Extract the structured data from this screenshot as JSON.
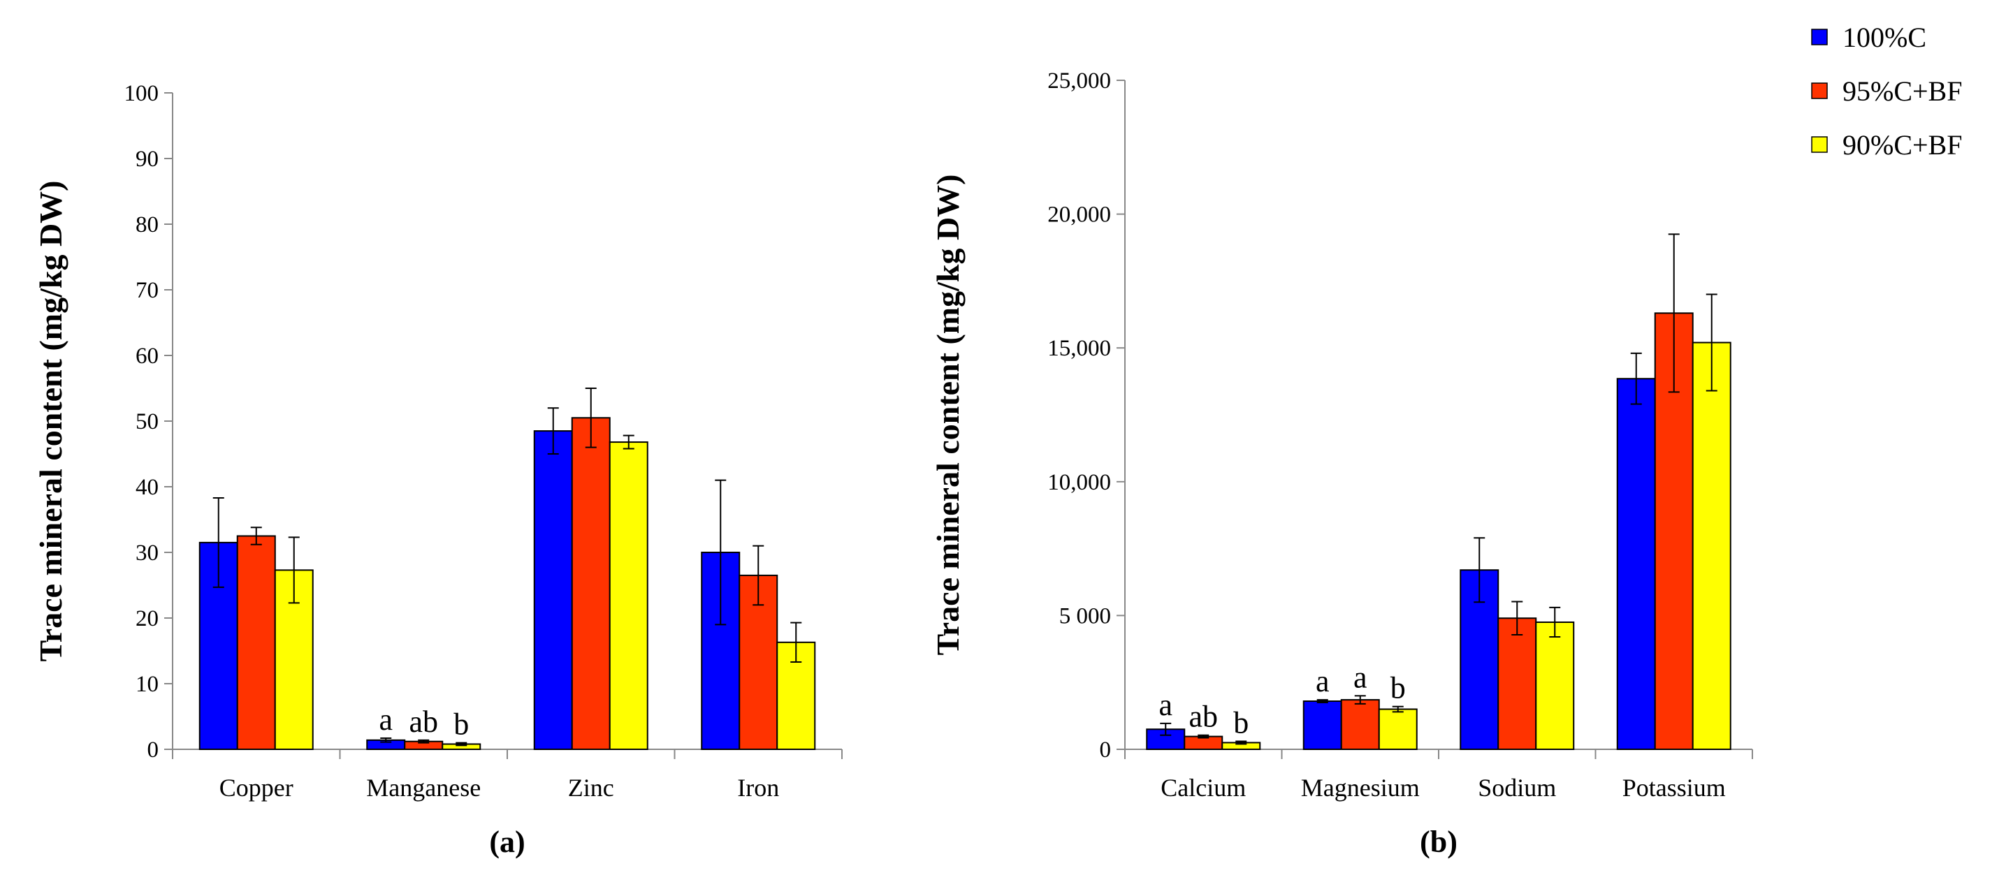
{
  "colors": {
    "series": [
      "#0000ff",
      "#ff3300",
      "#ffff00"
    ]
  },
  "legend": {
    "items": [
      {
        "label": "100%C",
        "color": "#0000ff"
      },
      {
        "label": "95%C+BF",
        "color": "#ff3300"
      },
      {
        "label": "90%C+BF",
        "color": "#ffff00"
      }
    ]
  },
  "chart_data": [
    {
      "type": "bar",
      "panel_label": "(a)",
      "ylabel": "Trace mineral content (mg/kg DW)",
      "xlabel": "",
      "ylim": [
        0,
        100
      ],
      "yticks": [
        0,
        10,
        20,
        30,
        40,
        50,
        60,
        70,
        80,
        90,
        100
      ],
      "ytick_labels": [
        "0",
        "10",
        "20",
        "30",
        "40",
        "50",
        "60",
        "70",
        "80",
        "90",
        "100"
      ],
      "grid": false,
      "categories": [
        "Copper",
        "Manganese",
        "Zinc",
        "Iron"
      ],
      "series": [
        {
          "name": "100%C",
          "values": [
            31.5,
            1.4,
            48.5,
            30.0
          ],
          "errors": [
            6.8,
            0.3,
            3.5,
            11.0
          ],
          "sig": [
            "",
            "a",
            "",
            ""
          ]
        },
        {
          "name": "95%C+BF",
          "values": [
            32.5,
            1.2,
            50.5,
            26.5
          ],
          "errors": [
            1.3,
            0.2,
            4.5,
            4.5
          ],
          "sig": [
            "",
            "ab",
            "",
            ""
          ]
        },
        {
          "name": "90%C+BF",
          "values": [
            27.3,
            0.8,
            46.8,
            16.3
          ],
          "errors": [
            5.0,
            0.2,
            1.0,
            3.0
          ],
          "sig": [
            "",
            "b",
            "",
            ""
          ]
        }
      ]
    },
    {
      "type": "bar",
      "panel_label": "(b)",
      "ylabel": "Trace mineral content (mg/kg DW)",
      "xlabel": "",
      "ylim": [
        0,
        25000
      ],
      "yticks": [
        0,
        5000,
        10000,
        15000,
        20000,
        25000
      ],
      "ytick_labels": [
        "0",
        "5 000",
        "10,000",
        "15,000",
        "20,000",
        "25,000"
      ],
      "grid": false,
      "categories": [
        "Calcium",
        "Magnesium",
        "Sodium",
        "Potassium"
      ],
      "series": [
        {
          "name": "100%C",
          "values": [
            750,
            1800,
            6700,
            13850
          ],
          "errors": [
            220,
            50,
            1200,
            950
          ],
          "sig": [
            "a",
            "a",
            "",
            ""
          ]
        },
        {
          "name": "95%C+BF",
          "values": [
            480,
            1850,
            4900,
            16300
          ],
          "errors": [
            50,
            150,
            620,
            2950
          ],
          "sig": [
            "ab",
            "a",
            "",
            ""
          ]
        },
        {
          "name": "90%C+BF",
          "values": [
            250,
            1500,
            4750,
            15200
          ],
          "errors": [
            50,
            100,
            550,
            1800
          ],
          "sig": [
            "b",
            "b",
            "",
            ""
          ]
        }
      ]
    }
  ]
}
